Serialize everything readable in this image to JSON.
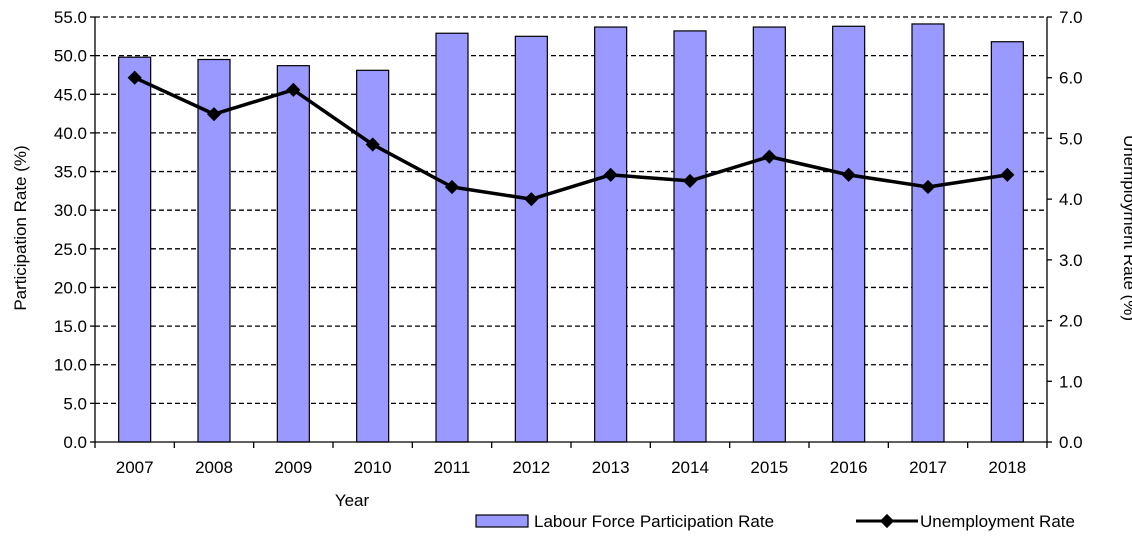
{
  "chart_data": {
    "type": "bar",
    "categories": [
      "2007",
      "2008",
      "2009",
      "2010",
      "2011",
      "2012",
      "2013",
      "2014",
      "2015",
      "2016",
      "2017",
      "2018"
    ],
    "series": [
      {
        "name": "Labour Force Participation Rate",
        "type": "bar",
        "axis": "left",
        "color": "#9999ff",
        "values": [
          49.8,
          49.5,
          48.7,
          48.1,
          52.9,
          52.5,
          53.7,
          53.2,
          53.7,
          53.8,
          54.1,
          51.8
        ]
      },
      {
        "name": "Unemployment Rate",
        "type": "line",
        "axis": "right",
        "color": "#000000",
        "values": [
          6.0,
          5.4,
          5.8,
          4.9,
          4.2,
          4.0,
          4.4,
          4.3,
          4.7,
          4.4,
          4.2,
          4.4
        ]
      }
    ],
    "xlabel": "Year",
    "ylabel": "Participation Rate (%)",
    "y2label": "Unemployment  Rate (%)",
    "ylim": [
      0,
      55
    ],
    "y2lim": [
      0,
      7
    ],
    "yticks": [
      "0.0",
      "5.0",
      "10.0",
      "15.0",
      "20.0",
      "25.0",
      "30.0",
      "35.0",
      "40.0",
      "45.0",
      "50.0",
      "55.0"
    ],
    "y2ticks": [
      "0.0",
      "1.0",
      "2.0",
      "3.0",
      "4.0",
      "5.0",
      "6.0",
      "7.0"
    ],
    "grid": "horizontal dashed",
    "legend": "bottom-right"
  }
}
